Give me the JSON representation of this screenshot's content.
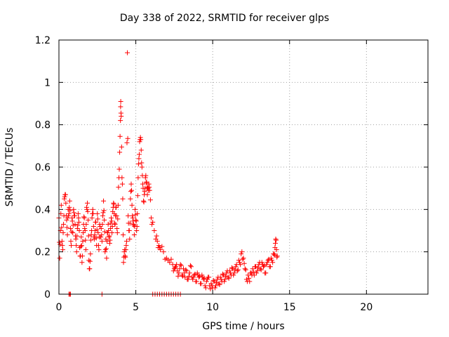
{
  "chart_data": {
    "type": "scatter",
    "title": "Day 338 of 2022, SRMTID for receiver glps",
    "xlabel": "GPS time / hours",
    "ylabel": "SRMTID / TECUs",
    "xlim": [
      0,
      24
    ],
    "ylim": [
      0,
      1.2
    ],
    "xticks": [
      "0",
      "5",
      "10",
      "15",
      "20"
    ],
    "yticks": [
      "0",
      "0.2",
      "0.4",
      "0.6",
      "0.8",
      "1",
      "1.2"
    ],
    "grid": true,
    "marker": "+",
    "series": [
      {
        "name": "glps",
        "color": "#ff0000",
        "points": [
          [
            0.0,
            0.36
          ],
          [
            0.05,
            0.17
          ],
          [
            0.1,
            0.3
          ],
          [
            0.15,
            0.42
          ],
          [
            0.2,
            0.25
          ],
          [
            0.25,
            0.21
          ],
          [
            0.3,
            0.33
          ],
          [
            0.35,
            0.45
          ],
          [
            0.4,
            0.47
          ],
          [
            0.45,
            0.43
          ],
          [
            0.5,
            0.35
          ],
          [
            0.55,
            0.28
          ],
          [
            0.6,
            0.4
          ],
          [
            0.65,
            0.38
          ],
          [
            0.7,
            0.44
          ],
          [
            0.75,
            0.31
          ],
          [
            0.8,
            0.23
          ],
          [
            0.85,
            0.36
          ],
          [
            0.9,
            0.29
          ],
          [
            0.95,
            0.4
          ],
          [
            1.0,
            0.37
          ],
          [
            1.05,
            0.33
          ],
          [
            1.1,
            0.26
          ],
          [
            1.15,
            0.2
          ],
          [
            1.2,
            0.31
          ],
          [
            1.25,
            0.38
          ],
          [
            1.3,
            0.34
          ],
          [
            1.35,
            0.22
          ],
          [
            1.4,
            0.18
          ],
          [
            1.45,
            0.27
          ],
          [
            1.5,
            0.15
          ],
          [
            1.55,
            0.25
          ],
          [
            1.6,
            0.33
          ],
          [
            1.65,
            0.36
          ],
          [
            1.7,
            0.3
          ],
          [
            1.75,
            0.21
          ],
          [
            1.8,
            0.41
          ],
          [
            1.85,
            0.43
          ],
          [
            1.9,
            0.35
          ],
          [
            1.95,
            0.16
          ],
          [
            2.0,
            0.12
          ],
          [
            2.05,
            0.19
          ],
          [
            2.1,
            0.28
          ],
          [
            2.15,
            0.36
          ],
          [
            2.2,
            0.4
          ],
          [
            2.25,
            0.32
          ],
          [
            2.3,
            0.26
          ],
          [
            2.35,
            0.3
          ],
          [
            2.4,
            0.34
          ],
          [
            2.45,
            0.23
          ],
          [
            2.5,
            0.38
          ],
          [
            2.55,
            0.29
          ],
          [
            2.6,
            0.21
          ],
          [
            2.65,
            0.33
          ],
          [
            2.7,
            0.27
          ],
          [
            2.75,
            0.31
          ],
          [
            2.8,
            0.25
          ],
          [
            2.85,
            0.37
          ],
          [
            2.9,
            0.44
          ],
          [
            2.95,
            0.35
          ],
          [
            3.0,
            0.2
          ],
          [
            3.05,
            0.26
          ],
          [
            3.1,
            0.17
          ],
          [
            3.15,
            0.29
          ],
          [
            3.2,
            0.33
          ],
          [
            3.25,
            0.27
          ],
          [
            3.3,
            0.24
          ],
          [
            3.35,
            0.31
          ],
          [
            3.4,
            0.36
          ],
          [
            3.45,
            0.29
          ],
          [
            3.5,
            0.39
          ],
          [
            3.55,
            0.43
          ],
          [
            3.6,
            0.38
          ],
          [
            3.65,
            0.33
          ],
          [
            3.7,
            0.41
          ],
          [
            3.75,
            0.37
          ],
          [
            3.8,
            0.29
          ],
          [
            3.85,
            0.42
          ],
          [
            3.9,
            0.55
          ],
          [
            3.95,
            0.67
          ],
          [
            4.0,
            0.82
          ],
          [
            4.02,
            0.91
          ],
          [
            4.05,
            0.84
          ],
          [
            4.1,
            0.55
          ],
          [
            4.15,
            0.45
          ],
          [
            4.2,
            0.15
          ],
          [
            4.25,
            0.2
          ],
          [
            4.3,
            0.18
          ],
          [
            4.35,
            0.21
          ],
          [
            4.4,
            0.25
          ],
          [
            4.45,
            1.14
          ],
          [
            4.5,
            0.37
          ],
          [
            4.55,
            0.3
          ],
          [
            4.6,
            0.26
          ],
          [
            4.65,
            0.45
          ],
          [
            4.7,
            0.52
          ],
          [
            4.75,
            0.42
          ],
          [
            4.8,
            0.36
          ],
          [
            4.85,
            0.33
          ],
          [
            4.9,
            0.28
          ],
          [
            4.95,
            0.4
          ],
          [
            5.0,
            0.35
          ],
          [
            5.05,
            0.3
          ],
          [
            5.1,
            0.38
          ],
          [
            5.15,
            0.55
          ],
          [
            5.2,
            0.64
          ],
          [
            5.25,
            0.72
          ],
          [
            5.3,
            0.74
          ],
          [
            5.35,
            0.68
          ],
          [
            5.4,
            0.6
          ],
          [
            5.45,
            0.52
          ],
          [
            5.5,
            0.44
          ],
          [
            5.55,
            0.47
          ],
          [
            5.6,
            0.5
          ],
          [
            5.65,
            0.56
          ],
          [
            5.7,
            0.53
          ],
          [
            5.75,
            0.47
          ],
          [
            5.8,
            0.5
          ],
          [
            5.85,
            0.52
          ],
          [
            5.9,
            0.49
          ],
          [
            6.0,
            0.36
          ],
          [
            6.1,
            0.34
          ],
          [
            6.3,
            0.26
          ],
          [
            6.4,
            0.25
          ],
          [
            6.5,
            0.23
          ],
          [
            6.6,
            0.21
          ],
          [
            6.8,
            0.2
          ],
          [
            7.0,
            0.17
          ],
          [
            7.2,
            0.15
          ],
          [
            7.4,
            0.14
          ],
          [
            7.5,
            0.12
          ],
          [
            7.6,
            0.13
          ],
          [
            7.7,
            0.11
          ],
          [
            7.8,
            0.1
          ],
          [
            7.9,
            0.14
          ],
          [
            8.0,
            0.09
          ],
          [
            8.1,
            0.12
          ],
          [
            8.2,
            0.08
          ],
          [
            8.3,
            0.11
          ],
          [
            8.4,
            0.07
          ],
          [
            8.5,
            0.1
          ],
          [
            8.6,
            0.13
          ],
          [
            8.7,
            0.07
          ],
          [
            8.8,
            0.09
          ],
          [
            8.9,
            0.06
          ],
          [
            9.0,
            0.1
          ],
          [
            9.1,
            0.08
          ],
          [
            9.2,
            0.05
          ],
          [
            9.3,
            0.09
          ],
          [
            9.4,
            0.07
          ],
          [
            9.5,
            0.04
          ],
          [
            9.6,
            0.06
          ],
          [
            9.7,
            0.08
          ],
          [
            9.8,
            0.04
          ],
          [
            9.9,
            0.05
          ],
          [
            10.0,
            0.03
          ],
          [
            10.1,
            0.06
          ],
          [
            10.2,
            0.04
          ],
          [
            10.3,
            0.07
          ],
          [
            10.4,
            0.05
          ],
          [
            10.5,
            0.08
          ],
          [
            10.6,
            0.06
          ],
          [
            10.7,
            0.09
          ],
          [
            10.8,
            0.07
          ],
          [
            10.9,
            0.1
          ],
          [
            11.0,
            0.08
          ],
          [
            11.1,
            0.11
          ],
          [
            11.2,
            0.09
          ],
          [
            11.3,
            0.12
          ],
          [
            11.4,
            0.1
          ],
          [
            11.5,
            0.13
          ],
          [
            11.6,
            0.11
          ],
          [
            11.7,
            0.16
          ],
          [
            11.8,
            0.14
          ],
          [
            11.9,
            0.2
          ],
          [
            12.0,
            0.17
          ],
          [
            12.1,
            0.12
          ],
          [
            12.2,
            0.07
          ],
          [
            12.3,
            0.09
          ],
          [
            12.4,
            0.06
          ],
          [
            12.5,
            0.1
          ],
          [
            12.6,
            0.12
          ],
          [
            12.7,
            0.09
          ],
          [
            12.8,
            0.13
          ],
          [
            12.9,
            0.11
          ],
          [
            13.0,
            0.14
          ],
          [
            13.1,
            0.12
          ],
          [
            13.2,
            0.15
          ],
          [
            13.3,
            0.13
          ],
          [
            13.4,
            0.1
          ],
          [
            13.5,
            0.14
          ],
          [
            13.6,
            0.16
          ],
          [
            13.7,
            0.13
          ],
          [
            13.8,
            0.17
          ],
          [
            13.9,
            0.15
          ],
          [
            14.0,
            0.19
          ],
          [
            14.05,
            0.22
          ],
          [
            14.1,
            0.26
          ],
          [
            14.15,
            0.21
          ],
          [
            14.2,
            0.18
          ]
        ],
        "zero_points": [
          0.65,
          0.7,
          0.75,
          2.8,
          6.1,
          6.25,
          6.4,
          6.55,
          6.7,
          6.85,
          7.0,
          7.15,
          7.3,
          7.45,
          7.6,
          7.75,
          7.9
        ]
      }
    ]
  }
}
